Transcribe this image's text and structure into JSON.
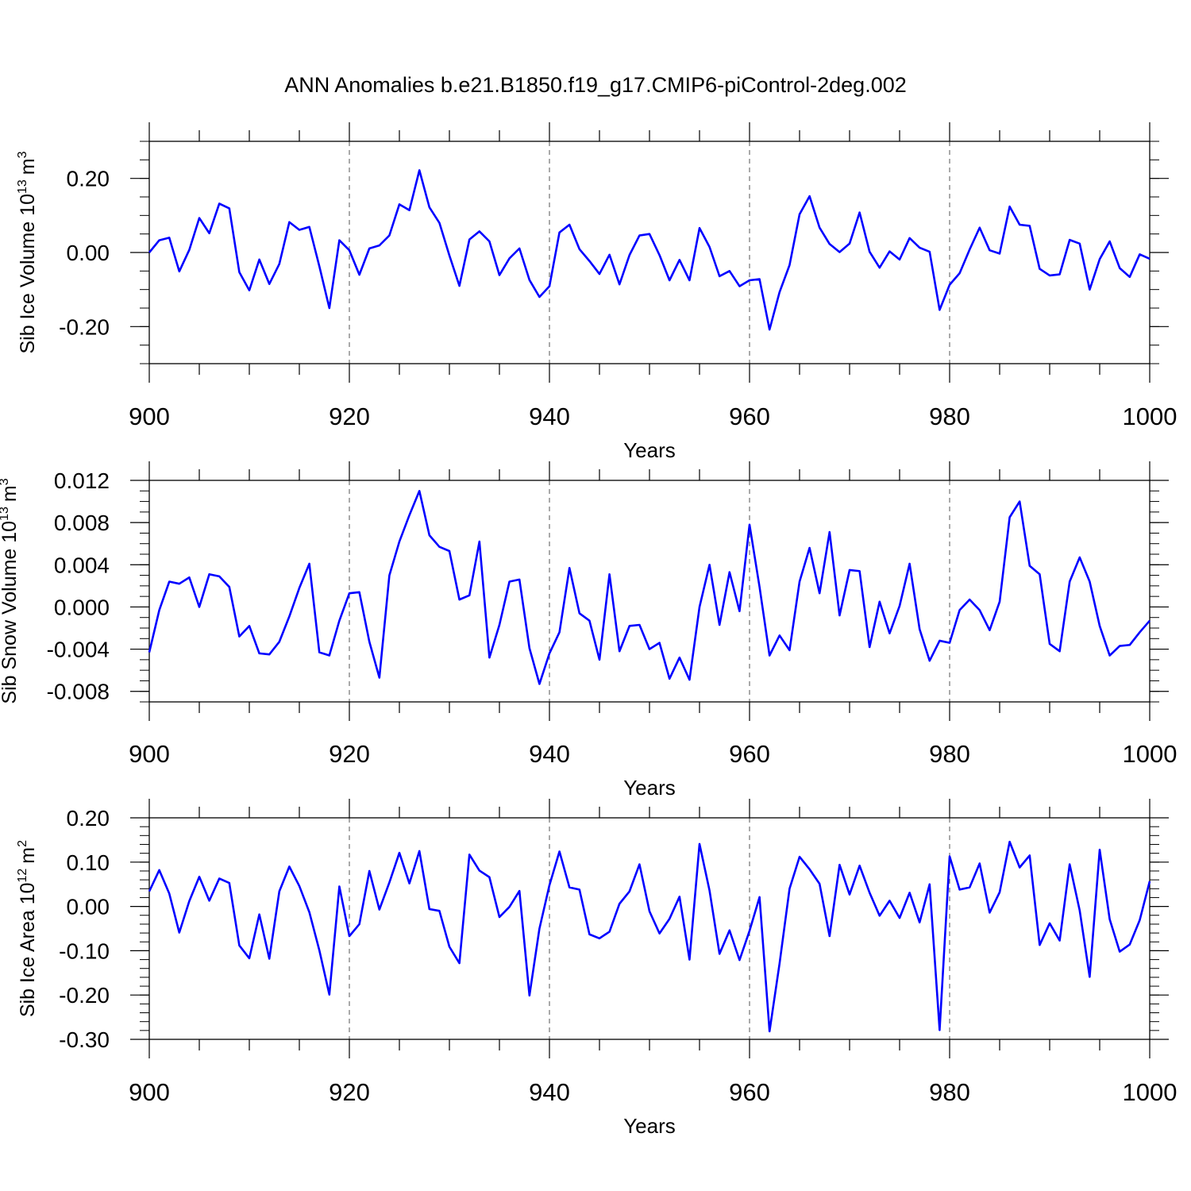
{
  "figure": {
    "title": "ANN Anomalies b.e21.B1850.f19_g17.CMIP6-piControl-2deg.002",
    "line_color": "#0000ff"
  },
  "chart_data": [
    {
      "type": "line",
      "title": "",
      "xlabel": "Years",
      "ylabel": {
        "prefix": "Sib Ice Volume 10",
        "exponent": "13",
        "unit": "m",
        "unit_exponent": "3"
      },
      "xlim": [
        900,
        1000
      ],
      "ylim": [
        -0.3,
        0.3
      ],
      "x_ticks": [
        900,
        920,
        940,
        960,
        980,
        1000
      ],
      "x_tick_labels": [
        "900",
        "920",
        "940",
        "960",
        "980",
        "1000"
      ],
      "y_ticks": [
        -0.2,
        0.0,
        0.2
      ],
      "y_tick_labels": [
        "-0.20",
        "0.00",
        "0.20"
      ],
      "y_minor_step": 0.05,
      "grid": "vertical dashed at major x ticks",
      "x": [
        900,
        901,
        902,
        903,
        904,
        905,
        906,
        907,
        908,
        909,
        910,
        911,
        912,
        913,
        914,
        915,
        916,
        917,
        918,
        919,
        920,
        921,
        922,
        923,
        924,
        925,
        926,
        927,
        928,
        929,
        930,
        931,
        932,
        933,
        934,
        935,
        936,
        937,
        938,
        939,
        940,
        941,
        942,
        943,
        944,
        945,
        946,
        947,
        948,
        949,
        950,
        951,
        952,
        953,
        954,
        955,
        956,
        957,
        958,
        959,
        960,
        961,
        962,
        963,
        964,
        965,
        966,
        967,
        968,
        969,
        970,
        971,
        972,
        973,
        974,
        975,
        976,
        977,
        978,
        979,
        980,
        981,
        982,
        983,
        984,
        985,
        986,
        987,
        988,
        989,
        990,
        991,
        992,
        993,
        994,
        995,
        996,
        997,
        998,
        999,
        1000
      ],
      "values": [
        0.0,
        0.033,
        0.04,
        -0.051,
        0.007,
        0.093,
        0.052,
        0.132,
        0.119,
        -0.053,
        -0.102,
        -0.019,
        -0.085,
        -0.031,
        0.082,
        0.061,
        0.069,
        -0.037,
        -0.15,
        0.033,
        0.006,
        -0.06,
        0.011,
        0.019,
        0.046,
        0.13,
        0.114,
        0.222,
        0.122,
        0.08,
        -0.008,
        -0.09,
        0.035,
        0.057,
        0.03,
        -0.061,
        -0.016,
        0.011,
        -0.074,
        -0.12,
        -0.091,
        0.054,
        0.075,
        0.009,
        -0.023,
        -0.058,
        -0.006,
        -0.086,
        -0.007,
        0.046,
        0.05,
        -0.007,
        -0.075,
        -0.02,
        -0.075,
        0.066,
        0.015,
        -0.064,
        -0.05,
        -0.091,
        -0.075,
        -0.072,
        -0.208,
        -0.107,
        -0.034,
        0.103,
        0.152,
        0.067,
        0.023,
        0.001,
        0.024,
        0.108,
        0.002,
        -0.041,
        0.003,
        -0.019,
        0.039,
        0.013,
        0.002,
        -0.155,
        -0.087,
        -0.056,
        0.008,
        0.067,
        0.006,
        -0.003,
        0.124,
        0.075,
        0.072,
        -0.044,
        -0.062,
        -0.059,
        0.034,
        0.024,
        -0.1,
        -0.018,
        0.03,
        -0.042,
        -0.066,
        -0.005,
        -0.017
      ]
    },
    {
      "type": "line",
      "title": "",
      "xlabel": "Years",
      "ylabel": {
        "prefix": "Sib Snow Volume 10",
        "exponent": "13",
        "unit": "m",
        "unit_exponent": "3"
      },
      "xlim": [
        900,
        1000
      ],
      "ylim": [
        -0.009,
        0.012
      ],
      "x_ticks": [
        900,
        920,
        940,
        960,
        980,
        1000
      ],
      "x_tick_labels": [
        "900",
        "920",
        "940",
        "960",
        "980",
        "1000"
      ],
      "y_ticks": [
        -0.008,
        -0.004,
        0.0,
        0.004,
        0.008,
        0.012
      ],
      "y_tick_labels": [
        "-0.008",
        "-0.004",
        "0.000",
        "0.004",
        "0.008",
        "0.012"
      ],
      "y_minor_step": 0.001,
      "grid": "vertical dashed at major x ticks",
      "x": [
        900,
        901,
        902,
        903,
        904,
        905,
        906,
        907,
        908,
        909,
        910,
        911,
        912,
        913,
        914,
        915,
        916,
        917,
        918,
        919,
        920,
        921,
        922,
        923,
        924,
        925,
        926,
        927,
        928,
        929,
        930,
        931,
        932,
        933,
        934,
        935,
        936,
        937,
        938,
        939,
        940,
        941,
        942,
        943,
        944,
        945,
        946,
        947,
        948,
        949,
        950,
        951,
        952,
        953,
        954,
        955,
        956,
        957,
        958,
        959,
        960,
        961,
        962,
        963,
        964,
        965,
        966,
        967,
        968,
        969,
        970,
        971,
        972,
        973,
        974,
        975,
        976,
        977,
        978,
        979,
        980,
        981,
        982,
        983,
        984,
        985,
        986,
        987,
        988,
        989,
        990,
        991,
        992,
        993,
        994,
        995,
        996,
        997,
        998,
        999,
        1000
      ],
      "values": [
        -0.0043,
        -0.0003,
        0.0024,
        0.0022,
        0.0028,
        0.0,
        0.0031,
        0.0029,
        0.0019,
        -0.0028,
        -0.0018,
        -0.0044,
        -0.0045,
        -0.0033,
        -0.0009,
        0.0018,
        0.0041,
        -0.0043,
        -0.0046,
        -0.0013,
        0.0013,
        0.0014,
        -0.0033,
        -0.0067,
        0.003,
        0.0062,
        0.0087,
        0.011,
        0.0068,
        0.0057,
        0.0053,
        0.0007,
        0.0011,
        0.0062,
        -0.0048,
        -0.0017,
        0.0024,
        0.0026,
        -0.0039,
        -0.0073,
        -0.0044,
        -0.0024,
        0.0037,
        -0.0006,
        -0.0013,
        -0.005,
        0.0031,
        -0.0042,
        -0.0018,
        -0.0017,
        -0.004,
        -0.0034,
        -0.0068,
        -0.0048,
        -0.0069,
        0.0,
        0.004,
        -0.0017,
        0.0033,
        -0.0004,
        0.0078,
        0.0019,
        -0.0046,
        -0.0027,
        -0.0041,
        0.0024,
        0.0056,
        0.0013,
        0.0071,
        -0.0008,
        0.0035,
        0.0034,
        -0.0038,
        0.0005,
        -0.0025,
        0.0001,
        0.0041,
        -0.0021,
        -0.0051,
        -0.0032,
        -0.0034,
        -0.0003,
        0.0007,
        -0.0003,
        -0.0022,
        0.0005,
        0.0085,
        0.01,
        0.0039,
        0.0031,
        -0.0035,
        -0.0042,
        0.0024,
        0.0047,
        0.0024,
        -0.0018,
        -0.0046,
        -0.0037,
        -0.0036,
        -0.0024,
        -0.0013
      ]
    },
    {
      "type": "line",
      "title": "",
      "xlabel": "Years",
      "ylabel": {
        "prefix": "Sib Ice Area 10",
        "exponent": "12",
        "unit": "m",
        "unit_exponent": "2"
      },
      "xlim": [
        900,
        1000
      ],
      "ylim": [
        -0.3,
        0.2
      ],
      "x_ticks": [
        900,
        920,
        940,
        960,
        980,
        1000
      ],
      "x_tick_labels": [
        "900",
        "920",
        "940",
        "960",
        "980",
        "1000"
      ],
      "y_ticks": [
        -0.3,
        -0.2,
        -0.1,
        0.0,
        0.1,
        0.2
      ],
      "y_tick_labels": [
        "-0.30",
        "-0.20",
        "-0.10",
        "0.00",
        "0.10",
        "0.20"
      ],
      "y_minor_step": 0.02,
      "grid": "vertical dashed at major x ticks",
      "x": [
        900,
        901,
        902,
        903,
        904,
        905,
        906,
        907,
        908,
        909,
        910,
        911,
        912,
        913,
        914,
        915,
        916,
        917,
        918,
        919,
        920,
        921,
        922,
        923,
        924,
        925,
        926,
        927,
        928,
        929,
        930,
        931,
        932,
        933,
        934,
        935,
        936,
        937,
        938,
        939,
        940,
        941,
        942,
        943,
        944,
        945,
        946,
        947,
        948,
        949,
        950,
        951,
        952,
        953,
        954,
        955,
        956,
        957,
        958,
        959,
        960,
        961,
        962,
        963,
        964,
        965,
        966,
        967,
        968,
        969,
        970,
        971,
        972,
        973,
        974,
        975,
        976,
        977,
        978,
        979,
        980,
        981,
        982,
        983,
        984,
        985,
        986,
        987,
        988,
        989,
        990,
        991,
        992,
        993,
        994,
        995,
        996,
        997,
        998,
        999,
        1000
      ],
      "values": [
        0.034,
        0.082,
        0.029,
        -0.059,
        0.012,
        0.067,
        0.013,
        0.063,
        0.053,
        -0.088,
        -0.117,
        -0.018,
        -0.118,
        0.034,
        0.09,
        0.046,
        -0.013,
        -0.099,
        -0.199,
        0.045,
        -0.067,
        -0.04,
        0.08,
        -0.007,
        0.054,
        0.121,
        0.052,
        0.125,
        -0.006,
        -0.01,
        -0.091,
        -0.128,
        0.117,
        0.081,
        0.066,
        -0.024,
        -0.001,
        0.035,
        -0.201,
        -0.05,
        0.048,
        0.124,
        0.043,
        0.038,
        -0.063,
        -0.072,
        -0.057,
        0.006,
        0.034,
        0.095,
        -0.011,
        -0.061,
        -0.028,
        0.022,
        -0.12,
        0.141,
        0.036,
        -0.107,
        -0.054,
        -0.121,
        -0.055,
        0.021,
        -0.282,
        -0.129,
        0.04,
        0.112,
        0.084,
        0.051,
        -0.067,
        0.094,
        0.027,
        0.092,
        0.031,
        -0.021,
        0.013,
        -0.026,
        0.031,
        -0.036,
        0.05,
        -0.279,
        0.113,
        0.038,
        0.043,
        0.097,
        -0.014,
        0.032,
        0.146,
        0.088,
        0.115,
        -0.087,
        -0.038,
        -0.077,
        0.095,
        -0.009,
        -0.159,
        0.128,
        -0.029,
        -0.102,
        -0.086,
        -0.031,
        0.057
      ]
    }
  ]
}
